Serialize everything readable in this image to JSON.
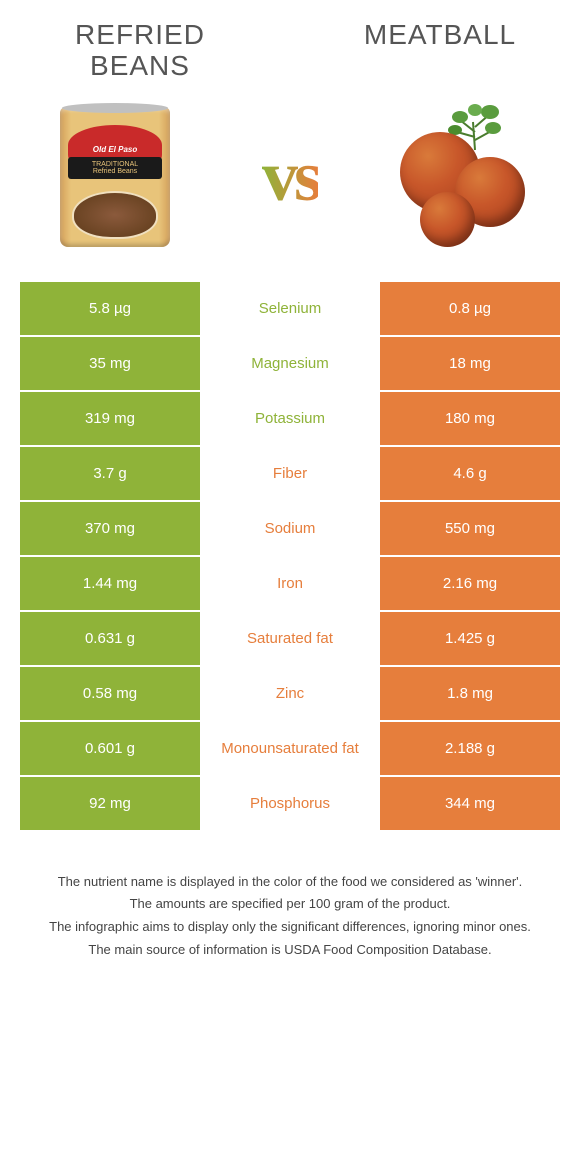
{
  "header": {
    "left_title": "Refried beans",
    "right_title": "Meatball",
    "vs": "vs"
  },
  "can": {
    "brand": "Old El Paso",
    "sublabel_line1": "TRADITIONAL",
    "sublabel_line2": "Refried Beans"
  },
  "colors": {
    "green": "#8fb339",
    "orange": "#e67e3c",
    "white": "#ffffff"
  },
  "comparison": {
    "rows": [
      {
        "left": "5.8 µg",
        "label": "Selenium",
        "right": "0.8 µg",
        "winner": "left"
      },
      {
        "left": "35 mg",
        "label": "Magnesium",
        "right": "18 mg",
        "winner": "left"
      },
      {
        "left": "319 mg",
        "label": "Potassium",
        "right": "180 mg",
        "winner": "left"
      },
      {
        "left": "3.7 g",
        "label": "Fiber",
        "right": "4.6 g",
        "winner": "right"
      },
      {
        "left": "370 mg",
        "label": "Sodium",
        "right": "550 mg",
        "winner": "right"
      },
      {
        "left": "1.44 mg",
        "label": "Iron",
        "right": "2.16 mg",
        "winner": "right"
      },
      {
        "left": "0.631 g",
        "label": "Saturated fat",
        "right": "1.425 g",
        "winner": "right"
      },
      {
        "left": "0.58 mg",
        "label": "Zinc",
        "right": "1.8 mg",
        "winner": "right"
      },
      {
        "left": "0.601 g",
        "label": "Monounsaturated fat",
        "right": "2.188 g",
        "winner": "right"
      },
      {
        "left": "92 mg",
        "label": "Phosphorus",
        "right": "344 mg",
        "winner": "right"
      }
    ]
  },
  "footer": {
    "line1": "The nutrient name is displayed in the color of the food we considered as 'winner'.",
    "line2": "The amounts are specified per 100 gram of the product.",
    "line3": "The infographic aims to display only the significant differences, ignoring minor ones.",
    "line4": "The main source of information is USDA Food Composition Database."
  }
}
